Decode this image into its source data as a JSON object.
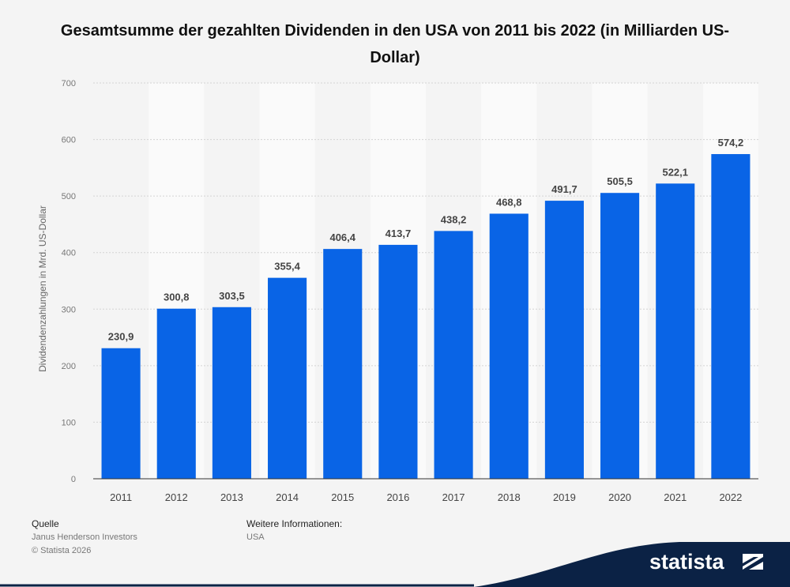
{
  "chart_data": {
    "type": "bar",
    "title": "Gesamtsumme der gezahlten Dividenden in den USA von 2011 bis 2022 (in Milliarden US-Dollar)",
    "categories": [
      "2011",
      "2012",
      "2013",
      "2014",
      "2015",
      "2016",
      "2017",
      "2018",
      "2019",
      "2020",
      "2021",
      "2022"
    ],
    "values": [
      230.9,
      300.8,
      303.5,
      355.4,
      406.4,
      413.7,
      438.2,
      468.8,
      491.7,
      505.5,
      522.1,
      574.2
    ],
    "value_labels": [
      "230,9",
      "300,8",
      "303,5",
      "355,4",
      "406,4",
      "413,7",
      "438,2",
      "468,8",
      "491,7",
      "505,5",
      "522,1",
      "574,2"
    ],
    "ylabel": "Dividendenzahlungen in Mrd. US-Dollar",
    "xlabel": "",
    "ylim": [
      0,
      700
    ],
    "yticks": [
      0,
      100,
      200,
      300,
      400,
      500,
      600,
      700
    ],
    "bar_color": "#0964e6"
  },
  "footer": {
    "source_label": "Quelle",
    "source_value": "Janus Henderson Investors",
    "copyright": "© Statista 2026",
    "info_label": "Weitere Informationen:",
    "info_value": "USA"
  },
  "brand": {
    "name": "statista",
    "color": "#0b2245"
  }
}
